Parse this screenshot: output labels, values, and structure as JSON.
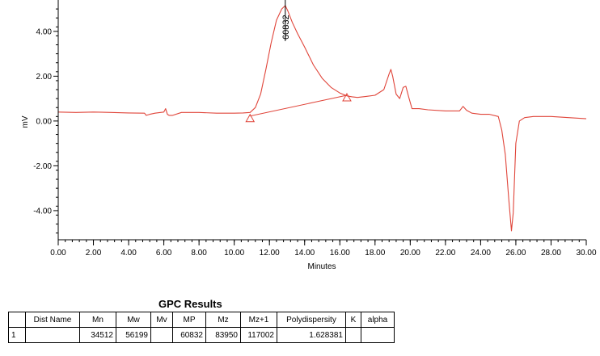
{
  "chart_data": {
    "type": "line",
    "xlabel": "Minutes",
    "ylabel": "mV",
    "xlim": [
      0,
      30
    ],
    "ylim": [
      -5.3,
      5.4
    ],
    "x_ticks": [
      "0.00",
      "2.00",
      "4.00",
      "6.00",
      "8.00",
      "10.00",
      "12.00",
      "14.00",
      "16.00",
      "18.00",
      "20.00",
      "22.00",
      "24.00",
      "26.00",
      "28.00",
      "30.00"
    ],
    "x_tick_values": [
      0,
      2,
      4,
      6,
      8,
      10,
      12,
      14,
      16,
      18,
      20,
      22,
      24,
      26,
      28,
      30
    ],
    "y_ticks": [
      "4.00",
      "2.00",
      "0.00",
      "-2.00",
      "-4.00"
    ],
    "y_tick_values": [
      4,
      2,
      0,
      -2,
      -4
    ],
    "grid": false,
    "line_color": "#e0453a",
    "series": [
      {
        "x": [
          0,
          1,
          2,
          3,
          4,
          4.9,
          5,
          5.2,
          5.5,
          6,
          6.1,
          6.2,
          6.3,
          6.5,
          7,
          8,
          9,
          10,
          10.5,
          10.9,
          11.2,
          11.5,
          11.8,
          12.1,
          12.4,
          12.7,
          12.9,
          13.05,
          13.3,
          13.6,
          14,
          14.5,
          15,
          15.5,
          16,
          16.4,
          16.7,
          17,
          17.5,
          18,
          18.5,
          18.8,
          18.9,
          19.0,
          19.2,
          19.4,
          19.6,
          19.75,
          19.9,
          20.1,
          20.5,
          21,
          22,
          22.8,
          23.0,
          23.2,
          23.5,
          24,
          24.5,
          25,
          25.2,
          25.4,
          25.6,
          25.75,
          25.85,
          26.0,
          26.2,
          26.5,
          27,
          28,
          29,
          30
        ],
        "y": [
          0.4,
          0.38,
          0.4,
          0.38,
          0.36,
          0.35,
          0.25,
          0.3,
          0.35,
          0.4,
          0.55,
          0.3,
          0.25,
          0.25,
          0.38,
          0.38,
          0.35,
          0.35,
          0.36,
          0.38,
          0.6,
          1.2,
          2.3,
          3.5,
          4.5,
          5.0,
          5.15,
          4.9,
          4.4,
          3.9,
          3.3,
          2.5,
          1.9,
          1.5,
          1.25,
          1.12,
          1.08,
          1.05,
          1.1,
          1.15,
          1.4,
          2.1,
          2.3,
          2.0,
          1.2,
          1.0,
          1.5,
          1.55,
          1.1,
          0.55,
          0.55,
          0.5,
          0.45,
          0.45,
          0.65,
          0.48,
          0.35,
          0.3,
          0.3,
          0.2,
          -0.4,
          -1.5,
          -3.5,
          -4.9,
          -4.1,
          -1.0,
          0.0,
          0.15,
          0.2,
          0.2,
          0.15,
          0.1
        ]
      }
    ],
    "baseline": {
      "x": [
        10.9,
        16.4
      ],
      "y": [
        0.22,
        1.15
      ]
    },
    "markers": [
      {
        "x": 10.9,
        "y": 0.22,
        "shape": "triangle"
      },
      {
        "x": 16.4,
        "y": 1.15,
        "shape": "triangle"
      }
    ],
    "peak": {
      "label": "60832",
      "x": 12.9,
      "y": 5.15
    }
  },
  "table": {
    "title": "GPC Results",
    "headers": [
      "",
      "Dist Name",
      "Mn",
      "Mw",
      "Mv",
      "MP",
      "Mz",
      "Mz+1",
      "Polydispersity",
      "K",
      "alpha"
    ],
    "rows": [
      [
        "1",
        "",
        "34512",
        "56199",
        "",
        "60832",
        "83950",
        "117002",
        "1.628381",
        "",
        ""
      ]
    ]
  }
}
